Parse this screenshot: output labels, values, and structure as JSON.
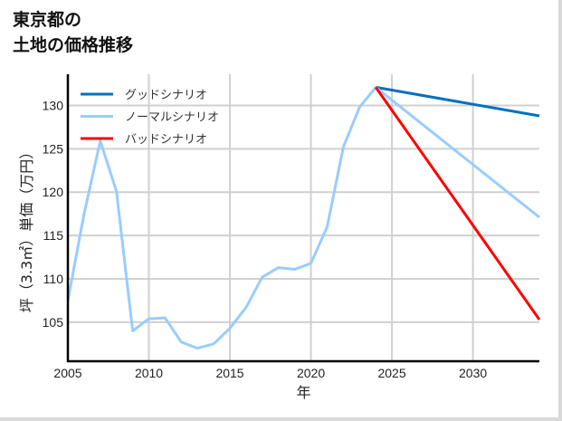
{
  "title_line1": "東京都の",
  "title_line2": "土地の価格推移",
  "chart_data": {
    "type": "line",
    "title": "東京都の土地の価格推移",
    "xlabel": "年",
    "ylabel": "坪（3.3㎡）単価（万円）",
    "xlim": [
      2005,
      2034.1
    ],
    "ylim": [
      100.5,
      133.6
    ],
    "x_ticks": [
      2005,
      2010,
      2015,
      2020,
      2025,
      2030
    ],
    "y_ticks": [
      105,
      110,
      115,
      120,
      125,
      130
    ],
    "grid": true,
    "legend_position": "upper left",
    "series": [
      {
        "name": "グッドシナリオ",
        "color": "#0070c0",
        "x": [
          2024,
          2034.1
        ],
        "values": [
          132.1,
          128.8
        ]
      },
      {
        "name": "ノーマルシナリオ",
        "color": "#99ccff",
        "x": [
          2005,
          2006,
          2007,
          2008,
          2009,
          2010,
          2011,
          2012,
          2013,
          2014,
          2015,
          2016,
          2017,
          2018,
          2019,
          2020,
          2021,
          2022,
          2023,
          2024,
          2034.1
        ],
        "values": [
          107.5,
          117.5,
          125.9,
          120.1,
          104.0,
          105.4,
          105.5,
          102.7,
          102.0,
          102.5,
          104.3,
          106.7,
          110.2,
          111.3,
          111.1,
          111.8,
          116.0,
          125.2,
          129.8,
          132.1,
          117.1
        ]
      },
      {
        "name": "バッドシナリオ",
        "color": "#ff0000",
        "x": [
          2024,
          2034.1
        ],
        "values": [
          132.1,
          105.3
        ]
      }
    ]
  }
}
